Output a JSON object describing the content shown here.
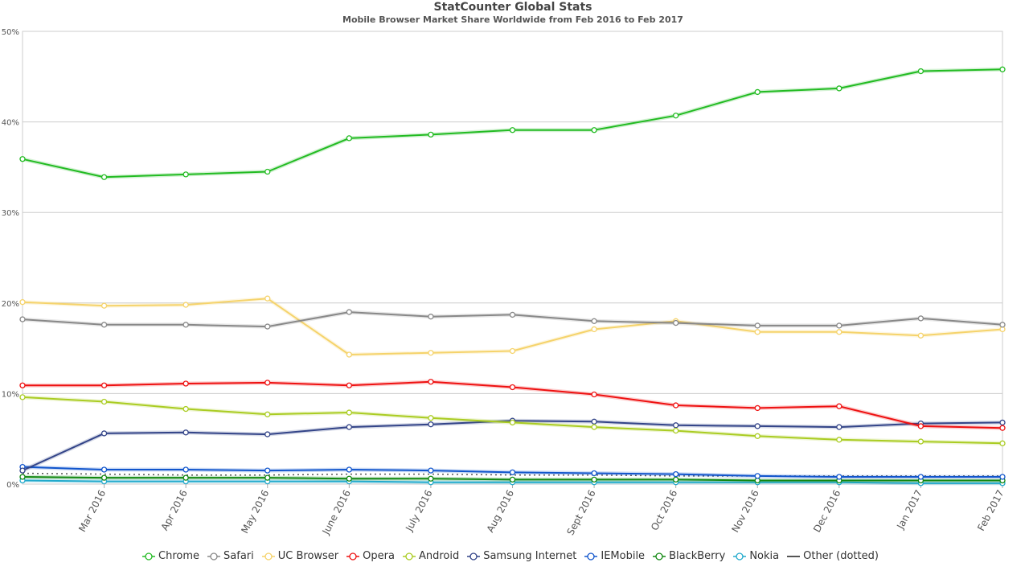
{
  "chart_data": {
    "type": "line",
    "title": "StatCounter Global Stats",
    "subtitle": "Mobile Browser Market Share Worldwide from Feb 2016 to Feb 2017",
    "xlabel": "",
    "ylabel": "",
    "ylim": [
      0,
      50
    ],
    "yticks": [
      "0%",
      "10%",
      "20%",
      "30%",
      "40%",
      "50%"
    ],
    "grid": true,
    "legend_position": "bottom",
    "categories": [
      "Feb 2016",
      "Mar 2016",
      "Apr 2016",
      "May 2016",
      "June 2016",
      "July 2016",
      "Aug 2016",
      "Sept 2016",
      "Oct 2016",
      "Nov 2016",
      "Dec 2016",
      "Jan 2017",
      "Feb 2017"
    ],
    "x_tick_labels": [
      "Mar 2016",
      "Apr 2016",
      "May 2016",
      "June 2016",
      "July 2016",
      "Aug 2016",
      "Sept 2016",
      "Oct 2016",
      "Nov 2016",
      "Dec 2016",
      "Jan 2017",
      "Feb 2017"
    ],
    "series": [
      {
        "name": "Chrome",
        "color": "#22bb22",
        "values": [
          35.9,
          33.9,
          34.2,
          34.5,
          38.2,
          38.6,
          39.1,
          39.1,
          40.7,
          43.3,
          43.7,
          45.6,
          45.8
        ]
      },
      {
        "name": "Safari",
        "color": "#888888",
        "values": [
          18.2,
          17.6,
          17.6,
          17.4,
          19.0,
          18.5,
          18.7,
          18.0,
          17.8,
          17.5,
          17.5,
          18.3,
          17.6
        ]
      },
      {
        "name": "UC Browser",
        "color": "#f5d36b",
        "values": [
          20.1,
          19.7,
          19.8,
          20.5,
          14.3,
          14.5,
          14.7,
          17.1,
          18.0,
          16.8,
          16.8,
          16.4,
          17.1
        ]
      },
      {
        "name": "Opera",
        "color": "#ee1111",
        "values": [
          10.9,
          10.9,
          11.1,
          11.2,
          10.9,
          11.3,
          10.7,
          9.9,
          8.7,
          8.4,
          8.6,
          6.4,
          6.2
        ]
      },
      {
        "name": "Android",
        "color": "#aacc22",
        "values": [
          9.6,
          9.1,
          8.3,
          7.7,
          7.9,
          7.3,
          6.8,
          6.3,
          5.9,
          5.3,
          4.9,
          4.7,
          4.5
        ]
      },
      {
        "name": "Samsung Internet",
        "color": "#334488",
        "values": [
          1.5,
          5.6,
          5.7,
          5.5,
          6.3,
          6.6,
          7.0,
          6.9,
          6.5,
          6.4,
          6.3,
          6.7,
          6.8
        ]
      },
      {
        "name": "IEMobile",
        "color": "#1155cc",
        "values": [
          1.9,
          1.6,
          1.6,
          1.5,
          1.6,
          1.5,
          1.3,
          1.2,
          1.1,
          0.9,
          0.8,
          0.8,
          0.8
        ]
      },
      {
        "name": "BlackBerry",
        "color": "#118811",
        "values": [
          0.8,
          0.7,
          0.7,
          0.7,
          0.6,
          0.6,
          0.5,
          0.5,
          0.5,
          0.4,
          0.4,
          0.4,
          0.4
        ]
      },
      {
        "name": "Nokia",
        "color": "#22aacc",
        "values": [
          0.4,
          0.3,
          0.3,
          0.3,
          0.3,
          0.2,
          0.2,
          0.2,
          0.2,
          0.2,
          0.2,
          0.1,
          0.1
        ]
      },
      {
        "name": "Other (dotted)",
        "color": "#555555",
        "dotted": true,
        "values": [
          1.2,
          1.1,
          1.0,
          1.0,
          1.1,
          1.1,
          1.0,
          1.0,
          0.9,
          0.9,
          0.9,
          0.9,
          0.9
        ]
      }
    ]
  }
}
